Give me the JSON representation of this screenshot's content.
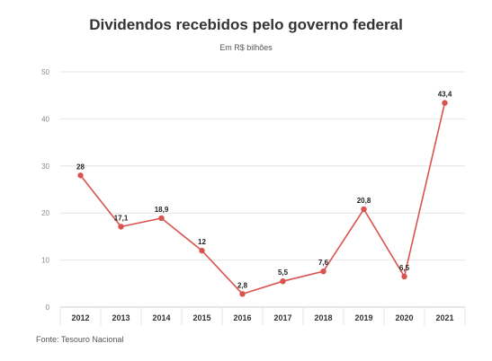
{
  "chart_data": {
    "type": "line",
    "title": "Dividendos recebidos pelo governo federal",
    "subtitle": "Em R$ bilhões",
    "source": "Fonte: Tesouro Nacional",
    "x": [
      "2012",
      "2013",
      "2014",
      "2015",
      "2016",
      "2017",
      "2018",
      "2019",
      "2020",
      "2021"
    ],
    "values": [
      28,
      17.1,
      18.9,
      12,
      2.8,
      5.5,
      7.6,
      20.8,
      6.5,
      43.4
    ],
    "data_labels": [
      "28",
      "17,1",
      "18,9",
      "12",
      "2,8",
      "5,5",
      "7,6",
      "20,8",
      "6,5",
      "43,4"
    ],
    "yticks": [
      "0",
      "10",
      "20",
      "30",
      "40",
      "50"
    ],
    "ylim": [
      0,
      50
    ],
    "grid": true,
    "color": "#d9534f"
  }
}
